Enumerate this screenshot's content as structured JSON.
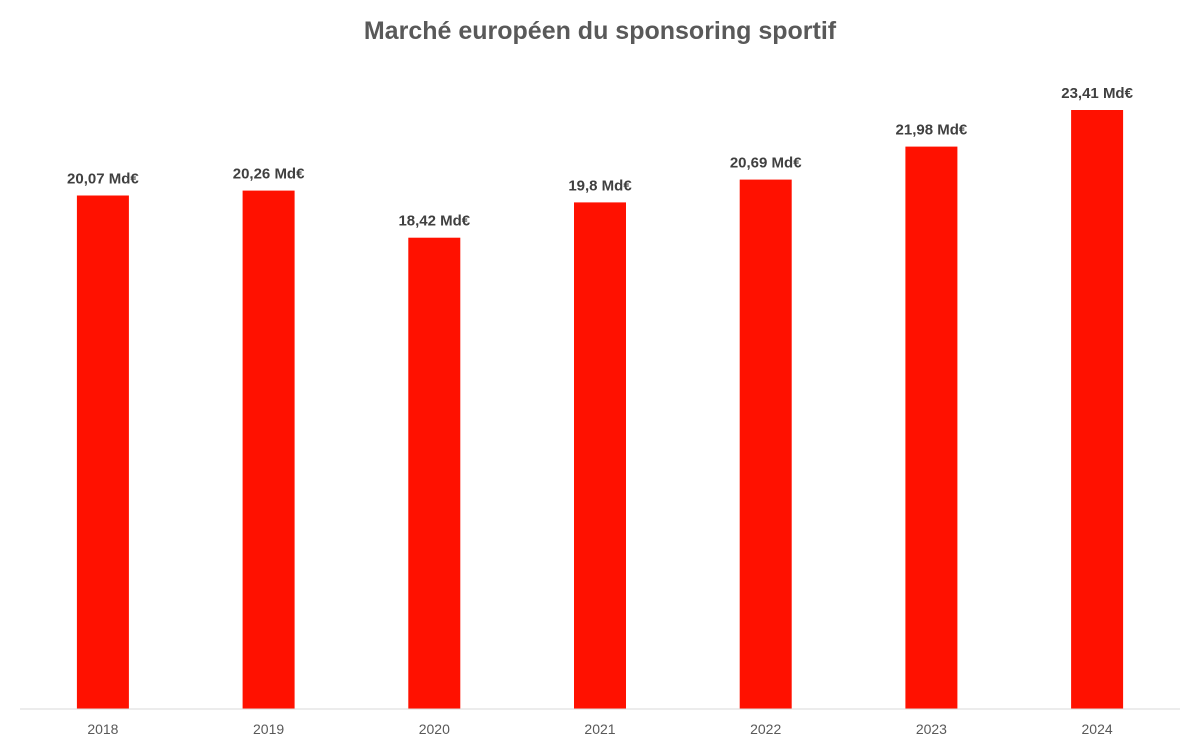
{
  "chart_data": {
    "type": "bar",
    "title": "Marché européen du sponsoring sportif",
    "categories": [
      "2018",
      "2019",
      "2020",
      "2021",
      "2022",
      "2023",
      "2024"
    ],
    "values": [
      20.07,
      20.26,
      18.42,
      19.8,
      20.69,
      21.98,
      23.41
    ],
    "data_labels": [
      "20,07 Md€",
      "20,26 Md€",
      "18,42 Md€",
      "19,8 Md€",
      "20,69 Md€",
      "21,98 Md€",
      "23,41 Md€"
    ],
    "xlabel": "",
    "ylabel": "",
    "ylim": [
      0,
      23.41
    ],
    "grid": false,
    "legend": "none",
    "colors": {
      "bar": "#ff1100",
      "axis": "#d9d9d9"
    }
  }
}
